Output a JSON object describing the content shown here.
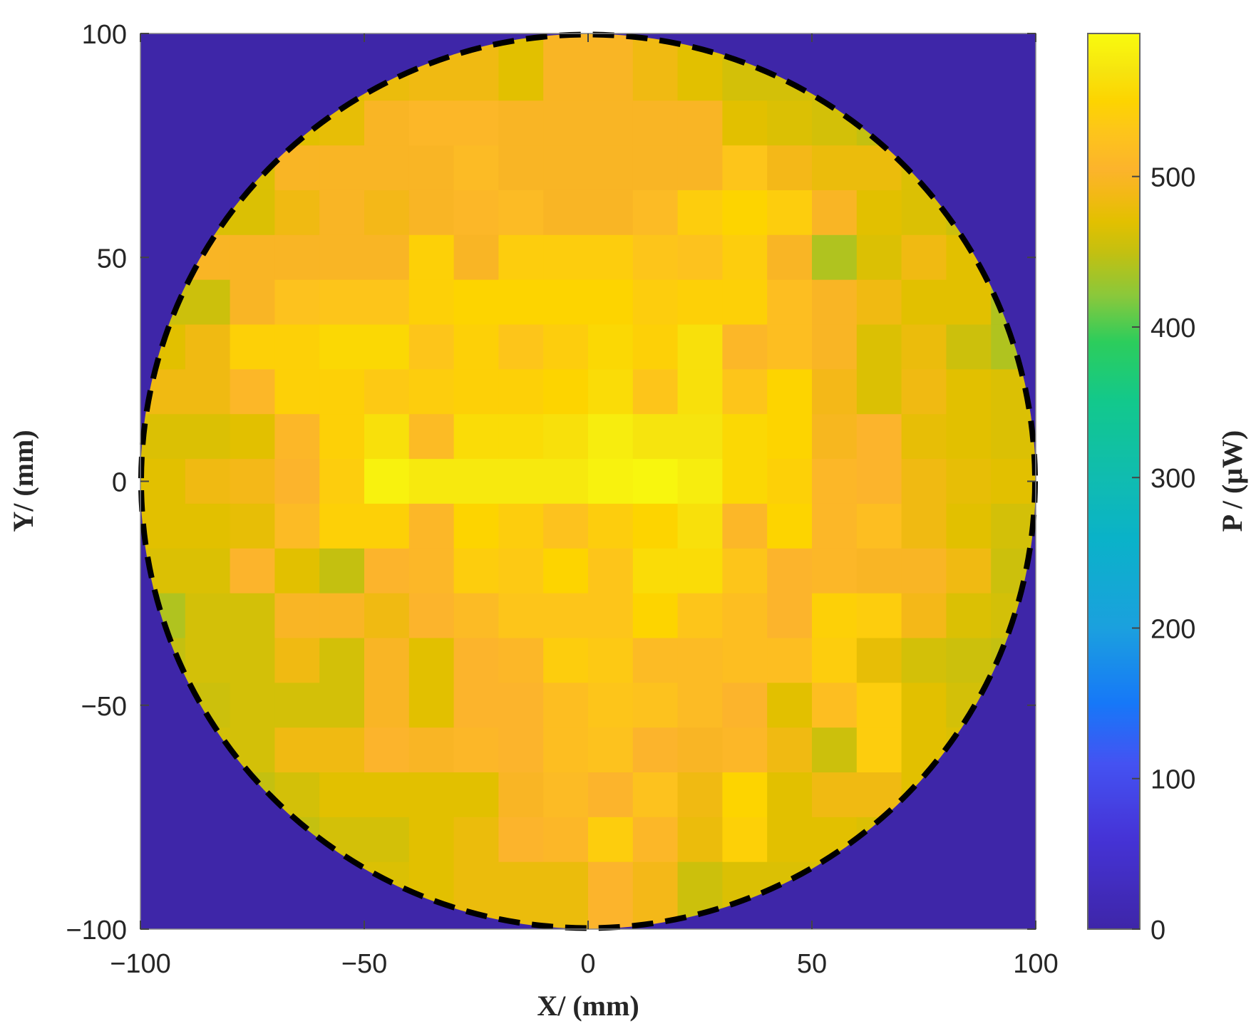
{
  "chart_data": {
    "type": "heatmap",
    "xlabel": "X/ (mm)",
    "ylabel": "Y/ (mm)",
    "colorbar_label": "P / (μW)",
    "xlim": [
      -100,
      100
    ],
    "ylim": [
      -100,
      100
    ],
    "clim": [
      0,
      595
    ],
    "colormap": "parula",
    "xticks": [
      -100,
      -50,
      0,
      50,
      100
    ],
    "xtick_labels": [
      "−100",
      "−50",
      "0",
      "50",
      "100"
    ],
    "yticks": [
      100,
      50,
      0,
      -50,
      -100
    ],
    "ytick_labels": [
      "100",
      "50",
      "0",
      "−50",
      "−100"
    ],
    "cticks": [
      0,
      100,
      200,
      300,
      400,
      500
    ],
    "ctick_labels": [
      "0",
      "100",
      "200",
      "300",
      "400",
      "500"
    ],
    "boundary": {
      "shape": "circle",
      "radius": 100,
      "style": "dashed",
      "color": "#000000"
    },
    "background_value": 0,
    "x_centers": [
      -95,
      -85,
      -75,
      -65,
      -55,
      -45,
      -35,
      -25,
      -15,
      -5,
      5,
      15,
      25,
      35,
      45,
      55,
      65,
      75,
      85,
      95
    ],
    "y_centers": [
      90,
      80,
      70,
      60,
      50,
      40,
      30,
      20,
      10,
      0,
      -10,
      -20,
      -30,
      -40,
      -50,
      -60,
      -70,
      -80,
      -90
    ],
    "values": [
      [
        null,
        null,
        null,
        null,
        470,
        480,
        485,
        485,
        470,
        500,
        500,
        485,
        470,
        460,
        460,
        460,
        null,
        null,
        null,
        null
      ],
      [
        null,
        null,
        null,
        470,
        475,
        500,
        510,
        510,
        500,
        500,
        500,
        500,
        500,
        470,
        465,
        460,
        450,
        null,
        null,
        null
      ],
      [
        null,
        null,
        465,
        500,
        500,
        500,
        500,
        515,
        500,
        500,
        500,
        500,
        500,
        530,
        490,
        480,
        480,
        465,
        null,
        null
      ],
      [
        null,
        465,
        465,
        485,
        500,
        490,
        500,
        510,
        515,
        500,
        500,
        515,
        540,
        550,
        540,
        500,
        470,
        465,
        455,
        null
      ],
      [
        null,
        500,
        500,
        500,
        500,
        500,
        545,
        500,
        540,
        540,
        540,
        530,
        525,
        540,
        500,
        440,
        465,
        485,
        470,
        null
      ],
      [
        455,
        455,
        500,
        525,
        530,
        530,
        545,
        550,
        550,
        550,
        550,
        540,
        545,
        545,
        520,
        500,
        485,
        470,
        470,
        440
      ],
      [
        470,
        485,
        545,
        545,
        555,
        555,
        530,
        545,
        530,
        540,
        555,
        545,
        565,
        510,
        520,
        500,
        465,
        480,
        455,
        440
      ],
      [
        485,
        485,
        510,
        545,
        545,
        535,
        540,
        545,
        545,
        550,
        560,
        530,
        565,
        530,
        550,
        490,
        465,
        485,
        470,
        465
      ],
      [
        465,
        465,
        470,
        510,
        545,
        565,
        515,
        560,
        560,
        565,
        580,
        570,
        570,
        555,
        550,
        495,
        505,
        475,
        470,
        465
      ],
      [
        470,
        485,
        490,
        505,
        540,
        585,
        575,
        575,
        575,
        575,
        585,
        590,
        580,
        555,
        545,
        510,
        505,
        485,
        475,
        470
      ],
      [
        470,
        470,
        475,
        515,
        545,
        545,
        510,
        550,
        540,
        525,
        540,
        550,
        565,
        510,
        550,
        510,
        520,
        485,
        470,
        460
      ],
      [
        465,
        465,
        505,
        470,
        450,
        505,
        510,
        540,
        535,
        550,
        530,
        560,
        560,
        530,
        505,
        510,
        500,
        500,
        485,
        455
      ],
      [
        440,
        460,
        460,
        500,
        500,
        485,
        505,
        515,
        530,
        530,
        530,
        550,
        530,
        520,
        505,
        545,
        540,
        490,
        465,
        460
      ],
      [
        450,
        460,
        460,
        485,
        460,
        500,
        470,
        505,
        510,
        540,
        535,
        515,
        515,
        520,
        520,
        540,
        475,
        460,
        455,
        450
      ],
      [
        null,
        455,
        460,
        460,
        460,
        500,
        470,
        505,
        505,
        520,
        530,
        525,
        515,
        505,
        470,
        520,
        540,
        470,
        460,
        null
      ],
      [
        null,
        460,
        460,
        485,
        485,
        505,
        500,
        510,
        505,
        520,
        525,
        505,
        500,
        510,
        485,
        455,
        540,
        470,
        465,
        null
      ],
      [
        null,
        null,
        450,
        460,
        470,
        470,
        470,
        470,
        500,
        515,
        505,
        525,
        485,
        550,
        470,
        485,
        485,
        470,
        null,
        null
      ],
      [
        null,
        null,
        null,
        450,
        460,
        460,
        470,
        480,
        505,
        510,
        540,
        510,
        480,
        545,
        470,
        470,
        465,
        null,
        null,
        null
      ],
      [
        null,
        null,
        null,
        null,
        465,
        465,
        470,
        480,
        480,
        480,
        505,
        490,
        455,
        465,
        465,
        465,
        null,
        null,
        null,
        null
      ]
    ]
  }
}
